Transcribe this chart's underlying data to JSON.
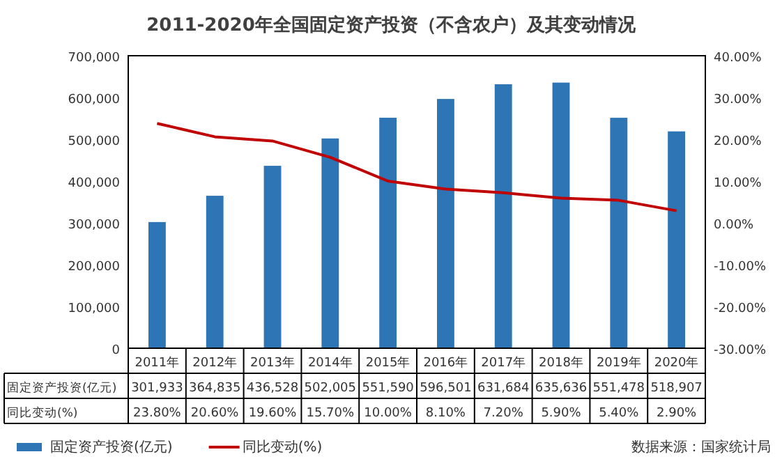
{
  "chart_data": {
    "type": "bar",
    "title": "2011-2020年全国固定资产投资（不含农户）及其变动情况",
    "categories": [
      "2011年",
      "2012年",
      "2013年",
      "2014年",
      "2015年",
      "2016年",
      "2017年",
      "2018年",
      "2019年",
      "2020年"
    ],
    "series": [
      {
        "name": "固定资产投资(亿元)",
        "color": "#2e75b6",
        "values": [
          301933,
          364835,
          436528,
          502005,
          551590,
          596501,
          631684,
          635636,
          551478,
          518907
        ],
        "value_labels": [
          "301,933",
          "364,835",
          "436,528",
          "502,005",
          "551,590",
          "596,501",
          "631,684",
          "635,636",
          "551,478",
          "518,907"
        ]
      },
      {
        "name": "同比变动(%)",
        "type": "line",
        "axis": "y2",
        "color": "#c00000",
        "values": [
          23.8,
          20.6,
          19.6,
          15.7,
          10.0,
          8.1,
          7.2,
          5.9,
          5.4,
          2.9
        ],
        "value_labels": [
          "23.80%",
          "20.60%",
          "19.60%",
          "15.70%",
          "10.00%",
          "8.10%",
          "7.20%",
          "5.90%",
          "5.40%",
          "2.90%"
        ]
      }
    ],
    "ylim": [
      0,
      700000
    ],
    "yticks": [
      {
        "value": 0,
        "label": "0"
      },
      {
        "value": 100000,
        "label": "100,000"
      },
      {
        "value": 200000,
        "label": "200,000"
      },
      {
        "value": 300000,
        "label": "300,000"
      },
      {
        "value": 400000,
        "label": "400,000"
      },
      {
        "value": 500000,
        "label": "500,000"
      },
      {
        "value": 600000,
        "label": "600,000"
      },
      {
        "value": 700000,
        "label": "700,000"
      }
    ],
    "y2lim": [
      -30,
      40
    ],
    "y2ticks": [
      {
        "value": -30,
        "label": "-30.00%"
      },
      {
        "value": -20,
        "label": "-20.00%"
      },
      {
        "value": -10,
        "label": "-10.00%"
      },
      {
        "value": 0,
        "label": "0.00%"
      },
      {
        "value": 10,
        "label": "10.00%"
      },
      {
        "value": 20,
        "label": "20.00%"
      },
      {
        "value": 30,
        "label": "30.00%"
      },
      {
        "value": 40,
        "label": "40.00%"
      }
    ],
    "legend": "bottom",
    "grid": false,
    "annotations": [
      "数据来源：国家统计局"
    ]
  }
}
